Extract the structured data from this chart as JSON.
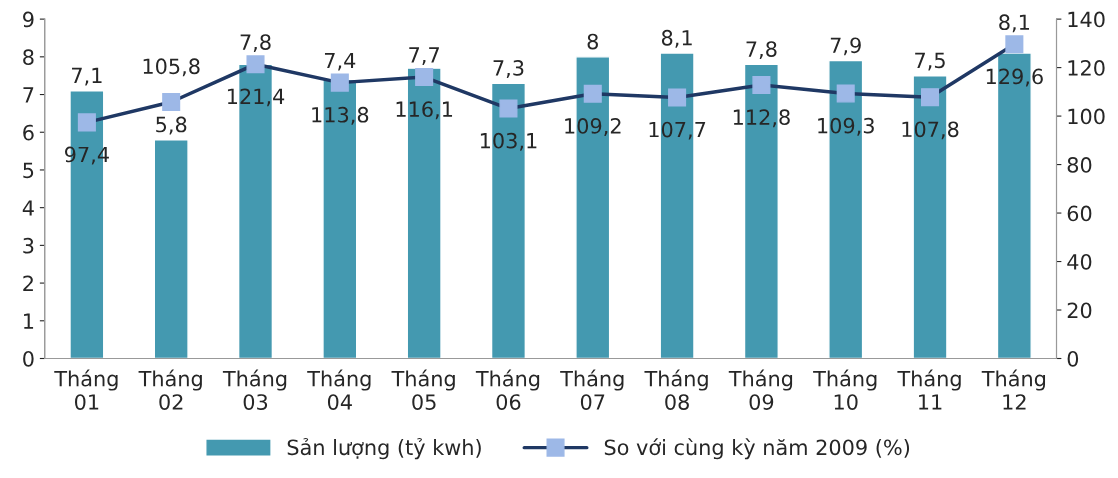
{
  "chart_data": {
    "type": "bar",
    "categories": [
      "Tháng\n01",
      "Tháng\n02",
      "Tháng\n03",
      "Tháng\n04",
      "Tháng\n05",
      "Tháng\n06",
      "Tháng\n07",
      "Tháng\n08",
      "Tháng\n09",
      "Tháng\n10",
      "Tháng\n11",
      "Tháng\n12"
    ],
    "series": [
      {
        "name": "Sản lượng (tỷ kwh)",
        "type": "bar",
        "color": "#4499b0",
        "values": [
          7.1,
          5.8,
          7.8,
          7.4,
          7.7,
          7.3,
          8,
          8.1,
          7.8,
          7.9,
          7.5,
          8.1
        ],
        "value_labels": [
          "7,1",
          "5,8",
          "7,8",
          "7,4",
          "7,7",
          "7,3",
          "8",
          "8,1",
          "7,8",
          "7,9",
          "7,5",
          "8,1"
        ]
      },
      {
        "name": "So với cùng kỳ năm 2009 (%)",
        "type": "line",
        "axis": "y2",
        "color": "#1f3864",
        "marker": "square",
        "line_style": "solid",
        "values": [
          97.4,
          105.8,
          121.4,
          113.8,
          116.1,
          103.1,
          109.2,
          107.7,
          112.8,
          109.3,
          107.8,
          129.6
        ],
        "value_labels": [
          "97,4",
          "105,8",
          "121,4",
          "113,8",
          "116,1",
          "103,1",
          "109,2",
          "107,7",
          "112,8",
          "109,3",
          "107,8",
          "129,6"
        ]
      }
    ],
    "ylim": [
      0,
      9
    ],
    "yticks": [
      0,
      1,
      2,
      3,
      4,
      5,
      6,
      7,
      8,
      9
    ],
    "y2lim": [
      0,
      140
    ],
    "y2ticks": [
      0,
      20,
      40,
      60,
      80,
      100,
      120,
      140
    ],
    "grid": false,
    "legend": "bottom"
  }
}
